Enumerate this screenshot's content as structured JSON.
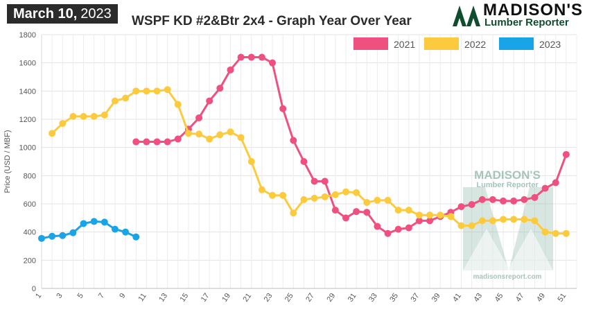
{
  "header": {
    "date_bold": "March 10,",
    "date_year": "2023",
    "title": "WSPF KD #2&Btr 2x4 - Graph Year Over Year"
  },
  "logo": {
    "name": "MADISON'S",
    "subtitle": "Lumber Reporter",
    "leaf_icon": "maple-leaf-icon",
    "mountains_icon": "mountains-icon"
  },
  "watermark": {
    "name": "MADISON'S",
    "subtitle": "Lumber Reporter",
    "url": "madisonsreport.com",
    "color": "#8fb8a8"
  },
  "chart_data": {
    "type": "line",
    "ylabel": "Price (USD / MBF)",
    "xlabel": "",
    "ylim": [
      0,
      1800
    ],
    "yticks": [
      0,
      200,
      400,
      600,
      800,
      1000,
      1200,
      1400,
      1600,
      1800
    ],
    "xlim": [
      1,
      52
    ],
    "xticks": [
      "1",
      "3",
      "5",
      "7",
      "9",
      "11",
      "13",
      "15",
      "17",
      "19",
      "21",
      "23",
      "25",
      "27",
      "29",
      "31",
      "33",
      "35",
      "37",
      "39",
      "41",
      "43",
      "45",
      "47",
      "49",
      "51"
    ],
    "grid": true,
    "legend_position": "top-right",
    "series": [
      {
        "name": "2021",
        "color": "#f0507f",
        "x": [
          10,
          11,
          12,
          13,
          14,
          15,
          16,
          17,
          18,
          19,
          20,
          21,
          22,
          23,
          24,
          25,
          26,
          27,
          28,
          29,
          30,
          31,
          32,
          33,
          34,
          35,
          36,
          37,
          38,
          39,
          40,
          41,
          42,
          43,
          44,
          45,
          46,
          47,
          48,
          49,
          50,
          51
        ],
        "y": [
          1040,
          1040,
          1040,
          1040,
          1060,
          1130,
          1210,
          1330,
          1420,
          1550,
          1640,
          1640,
          1640,
          1600,
          1275,
          1050,
          900,
          760,
          760,
          555,
          500,
          545,
          540,
          440,
          390,
          420,
          430,
          480,
          480,
          510,
          540,
          580,
          595,
          630,
          630,
          620,
          620,
          630,
          645,
          710,
          750,
          950
        ]
      },
      {
        "name": "2022",
        "color": "#fccb3d",
        "x": [
          2,
          3,
          4,
          5,
          6,
          7,
          8,
          9,
          10,
          11,
          12,
          13,
          14,
          15,
          16,
          17,
          18,
          19,
          20,
          21,
          22,
          23,
          24,
          25,
          26,
          27,
          28,
          29,
          30,
          31,
          32,
          33,
          34,
          35,
          36,
          37,
          38,
          39,
          40,
          41,
          42,
          43,
          44,
          45,
          46,
          47,
          48,
          49,
          50,
          51
        ],
        "y": [
          1100,
          1170,
          1220,
          1220,
          1220,
          1230,
          1330,
          1350,
          1400,
          1400,
          1400,
          1410,
          1305,
          1100,
          1095,
          1060,
          1090,
          1110,
          1070,
          900,
          700,
          660,
          660,
          535,
          630,
          640,
          650,
          665,
          685,
          680,
          610,
          625,
          625,
          555,
          555,
          520,
          520,
          520,
          510,
          445,
          445,
          480,
          480,
          490,
          490,
          490,
          480,
          400,
          390,
          390
        ]
      },
      {
        "name": "2023",
        "color": "#1aa4e8",
        "x": [
          1,
          2,
          3,
          4,
          5,
          6,
          7,
          8,
          9,
          10
        ],
        "y": [
          355,
          370,
          375,
          395,
          460,
          475,
          470,
          420,
          400,
          365
        ]
      }
    ]
  }
}
